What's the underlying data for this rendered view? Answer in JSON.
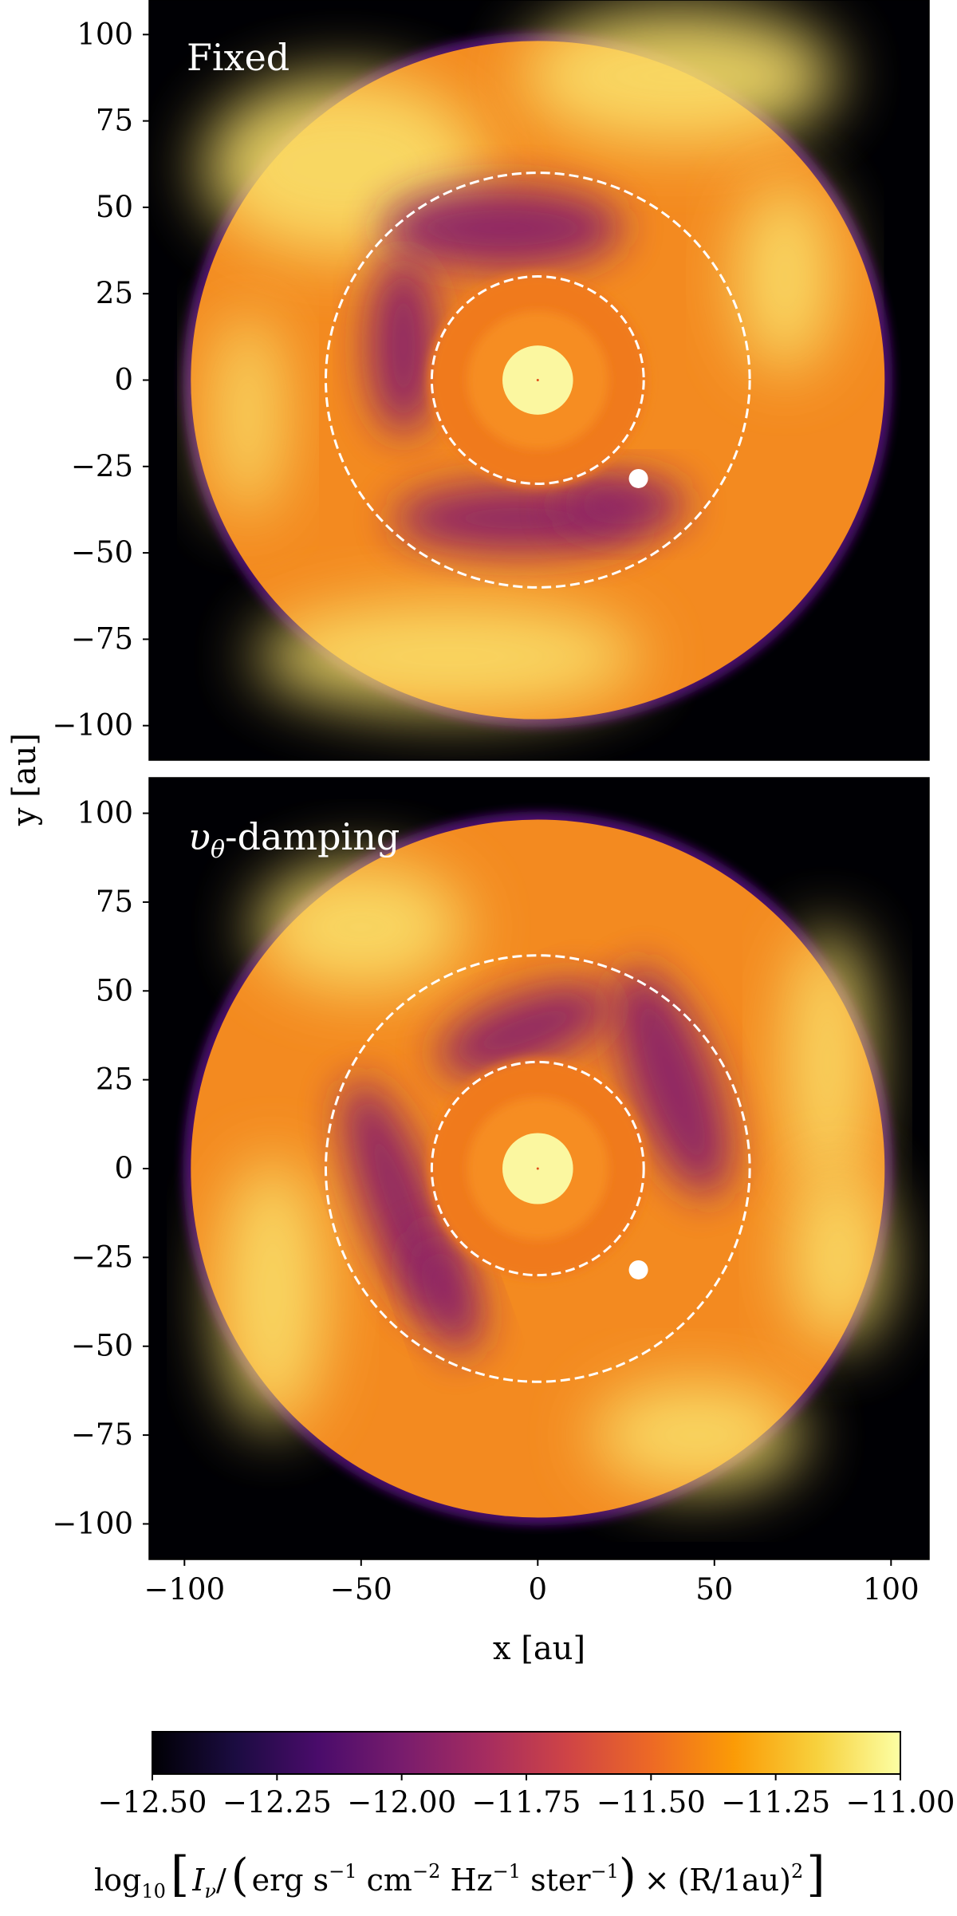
{
  "chart_data": {
    "type": "heatmap",
    "panels": [
      {
        "title": "Fixed",
        "title_is_math": false,
        "xlim": [
          -110,
          110
        ],
        "ylim": [
          -110,
          110
        ],
        "disk_outer_radius": 100,
        "inner_disk_radius": 10,
        "dashed_circles_radius": [
          30,
          60
        ],
        "planet": {
          "x": 28.5,
          "y": -28.5
        },
        "yticks": [
          100,
          75,
          50,
          25,
          0,
          -25,
          -50,
          -75,
          -100
        ],
        "ytick_labels": [
          "100",
          "75",
          "50",
          "25",
          "0",
          "−25",
          "−50",
          "−75",
          "−100"
        ],
        "gap_rotation_deg": 0
      },
      {
        "title": "υθ-damping",
        "title_main": "υ",
        "title_sub": "θ",
        "title_rest": "-damping",
        "title_is_math": true,
        "xlim": [
          -110,
          110
        ],
        "ylim": [
          -110,
          110
        ],
        "disk_outer_radius": 100,
        "inner_disk_radius": 10,
        "dashed_circles_radius": [
          30,
          60
        ],
        "planet": {
          "x": 28.5,
          "y": -28.5
        },
        "yticks": [
          100,
          75,
          50,
          25,
          0,
          -25,
          -50,
          -75,
          -100
        ],
        "ytick_labels": [
          "100",
          "75",
          "50",
          "25",
          "0",
          "−25",
          "−50",
          "−75",
          "−100"
        ],
        "gap_rotation_deg": 70
      }
    ],
    "xticks": [
      -100,
      -50,
      0,
      50,
      100
    ],
    "xtick_labels": [
      "−100",
      "−50",
      "0",
      "50",
      "100"
    ],
    "xlabel": "x [au]",
    "ylabel": "y [au]",
    "colormap": "inferno",
    "colorbar": {
      "vmin": -12.5,
      "vmax": -11.0,
      "ticks": [
        -12.5,
        -12.25,
        -12.0,
        -11.75,
        -11.5,
        -11.25,
        -11.0
      ],
      "tick_labels": [
        "−12.50",
        "−12.25",
        "−12.00",
        "−11.75",
        "−11.50",
        "−11.25",
        "−11.00"
      ],
      "label": "log10 [ Iν / (erg s−1 cm−2 Hz−1 ster−1) × (R/1au)2 ]",
      "label_parts": {
        "log": "log",
        "log_sub": "10",
        "I": "I",
        "I_sub": "ν",
        "slash": "/",
        "unit_erg": "erg s",
        "exp1": "−1",
        "unit_cm": " cm",
        "exp2": "−2",
        "unit_hz": " Hz",
        "exp3": "−1",
        "unit_ster": " ster",
        "exp4": "−1",
        "times": "×",
        "ratio": "(R/1au)",
        "sq": "2"
      }
    }
  },
  "colors": {
    "background": "#000004",
    "cmap_stops": [
      "#000004",
      "#1b0c41",
      "#4a0c6b",
      "#781c6d",
      "#a52c60",
      "#cf4446",
      "#ed6925",
      "#fb9b06",
      "#f7d13d",
      "#fcffa4"
    ],
    "dashed_circle": "#ffffff",
    "planet": "#ffffff"
  }
}
